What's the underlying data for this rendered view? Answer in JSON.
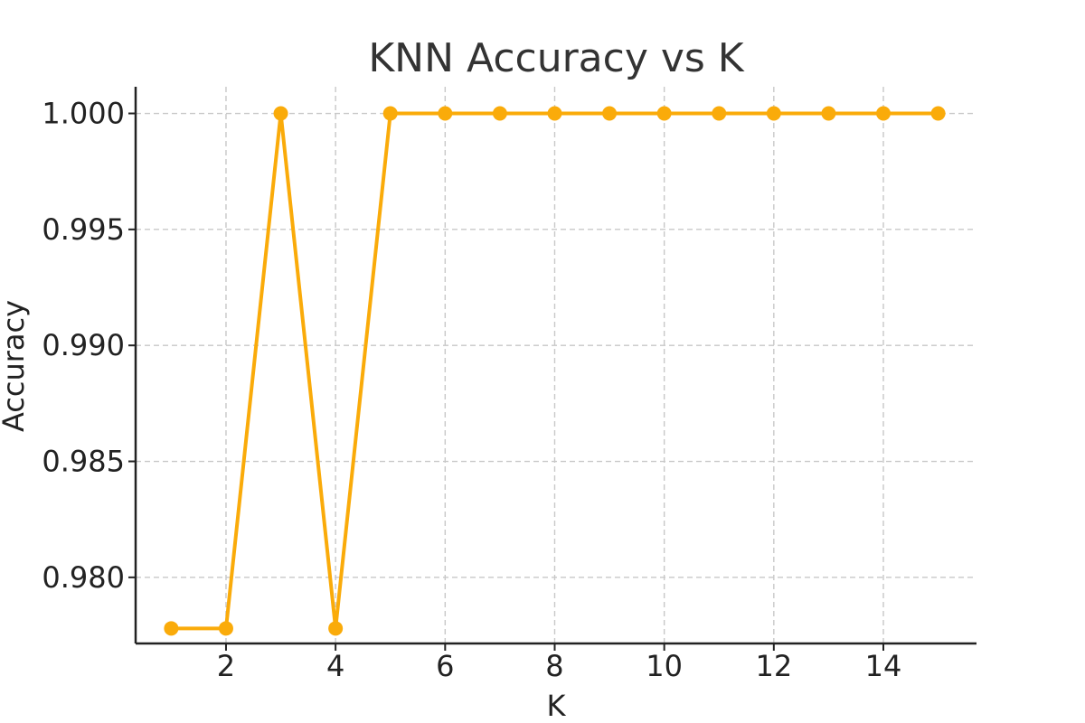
{
  "chart_data": {
    "type": "line",
    "title": "KNN Accuracy vs K",
    "xlabel": "K",
    "ylabel": "Accuracy",
    "xlim": [
      0.35,
      15.7
    ],
    "ylim": [
      0.97715,
      1.00115
    ],
    "xticks": [
      2,
      4,
      6,
      8,
      10,
      12,
      14
    ],
    "xtick_labels": [
      "2",
      "4",
      "6",
      "8",
      "10",
      "12",
      "14"
    ],
    "yticks": [
      0.98,
      0.985,
      0.99,
      0.995,
      1.0
    ],
    "ytick_labels": [
      "0.980",
      "0.985",
      "0.990",
      "0.995",
      "1.000"
    ],
    "grid": true,
    "legend": "none",
    "series": [
      {
        "color": "#FAAB0A",
        "marker": "circle",
        "x": [
          1,
          2,
          3,
          4,
          5,
          6,
          7,
          8,
          9,
          10,
          11,
          12,
          13,
          14,
          15
        ],
        "y": [
          0.9778,
          0.9778,
          1.0,
          0.9778,
          1.0,
          1.0,
          1.0,
          1.0,
          1.0,
          1.0,
          1.0,
          1.0,
          1.0,
          1.0,
          1.0
        ]
      }
    ]
  }
}
